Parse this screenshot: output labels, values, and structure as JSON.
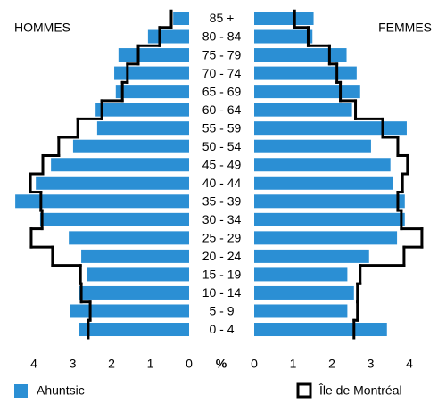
{
  "chart_data": {
    "type": "pyramid",
    "categories": [
      "85 +",
      "80 - 84",
      "75 - 79",
      "70 - 74",
      "65 - 69",
      "60 - 64",
      "55 - 59",
      "50 - 54",
      "45 - 49",
      "40 - 44",
      "35 - 39",
      "30 - 34",
      "25 - 29",
      "20 - 24",
      "15 - 19",
      "10 - 14",
      "5 - 9",
      "0 - 4"
    ],
    "x_label": "%",
    "xlim": [
      0,
      4.5
    ],
    "xticks": [
      0,
      1,
      2,
      3,
      4
    ],
    "series": [
      {
        "name": "Ahuntsic",
        "color": "#2b8fd4",
        "style": "bar"
      },
      {
        "name": "Île de Montréal",
        "color": "#000000",
        "style": "step"
      }
    ],
    "panels": [
      {
        "title": "HOMMES",
        "side": "left",
        "values": [
          [
            0.41,
            1.06,
            1.82,
            1.93,
            1.89,
            2.41,
            2.37,
            2.99,
            3.56,
            3.95,
            4.48,
            3.84,
            3.1,
            2.78,
            2.64,
            2.85,
            3.06,
            2.83
          ],
          [
            0.46,
            0.76,
            1.31,
            1.59,
            1.72,
            2.25,
            2.87,
            3.36,
            3.77,
            4.09,
            3.82,
            3.79,
            4.07,
            3.52,
            2.8,
            2.78,
            2.55,
            2.6
          ]
        ]
      },
      {
        "title": "FEMMES",
        "side": "right",
        "values": [
          [
            1.53,
            1.5,
            2.38,
            2.64,
            2.73,
            2.52,
            3.93,
            3.01,
            3.51,
            3.58,
            3.88,
            3.88,
            3.68,
            2.96,
            2.4,
            2.57,
            2.4,
            3.42
          ],
          [
            1.04,
            1.39,
            1.94,
            2.13,
            2.22,
            2.61,
            3.31,
            3.7,
            3.95,
            3.82,
            3.7,
            3.79,
            4.32,
            3.86,
            2.73,
            2.66,
            2.66,
            2.57
          ]
        ]
      }
    ]
  }
}
